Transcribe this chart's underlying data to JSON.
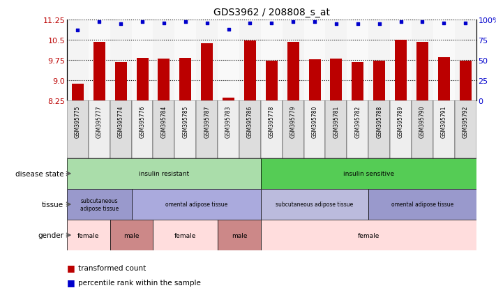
{
  "title": "GDS3962 / 208808_s_at",
  "samples": [
    "GSM395775",
    "GSM395777",
    "GSM395774",
    "GSM395776",
    "GSM395784",
    "GSM395785",
    "GSM395787",
    "GSM395783",
    "GSM395786",
    "GSM395778",
    "GSM395779",
    "GSM395780",
    "GSM395781",
    "GSM395782",
    "GSM395788",
    "GSM395789",
    "GSM395790",
    "GSM395791",
    "GSM395792"
  ],
  "bar_values": [
    8.88,
    10.43,
    9.68,
    9.82,
    9.81,
    9.83,
    10.38,
    8.35,
    10.48,
    9.72,
    10.42,
    9.78,
    9.79,
    9.68,
    9.72,
    10.5,
    10.42,
    9.85,
    9.73
  ],
  "dot_values": [
    87,
    97,
    95,
    97,
    96,
    97,
    96,
    88,
    96,
    96,
    97,
    97,
    95,
    95,
    95,
    97,
    97,
    96,
    96
  ],
  "ymin": 8.25,
  "ymax": 11.25,
  "y2min": 0,
  "y2max": 100,
  "yticks": [
    8.25,
    9.0,
    9.75,
    10.5,
    11.25
  ],
  "y2ticks": [
    0,
    25,
    50,
    75,
    100
  ],
  "bar_color": "#bb0000",
  "dot_color": "#0000cc",
  "title_fontsize": 10,
  "disease_state_groups": [
    {
      "label": "insulin resistant",
      "start": 0,
      "end": 9,
      "color": "#aaddaa"
    },
    {
      "label": "insulin sensitive",
      "start": 9,
      "end": 19,
      "color": "#55cc55"
    }
  ],
  "tissue_groups": [
    {
      "label": "subcutaneous\nadipose tissue",
      "start": 0,
      "end": 3,
      "color": "#9999cc"
    },
    {
      "label": "omental adipose tissue",
      "start": 3,
      "end": 9,
      "color": "#aaaadd"
    },
    {
      "label": "subcutaneous adipose tissue",
      "start": 9,
      "end": 14,
      "color": "#bbbbdd"
    },
    {
      "label": "omental adipose tissue",
      "start": 14,
      "end": 19,
      "color": "#9999cc"
    }
  ],
  "gender_groups": [
    {
      "label": "female",
      "start": 0,
      "end": 2,
      "color": "#ffdddd"
    },
    {
      "label": "male",
      "start": 2,
      "end": 4,
      "color": "#cc8888"
    },
    {
      "label": "female",
      "start": 4,
      "end": 7,
      "color": "#ffdddd"
    },
    {
      "label": "male",
      "start": 7,
      "end": 9,
      "color": "#cc8888"
    },
    {
      "label": "female",
      "start": 9,
      "end": 19,
      "color": "#ffdddd"
    }
  ],
  "row_labels": [
    "disease state",
    "tissue",
    "gender"
  ],
  "legend_items": [
    {
      "label": "transformed count",
      "color": "#bb0000"
    },
    {
      "label": "percentile rank within the sample",
      "color": "#0000cc"
    }
  ],
  "sample_col_bg_odd": "#dddddd",
  "sample_col_bg_even": "#eeeeee"
}
